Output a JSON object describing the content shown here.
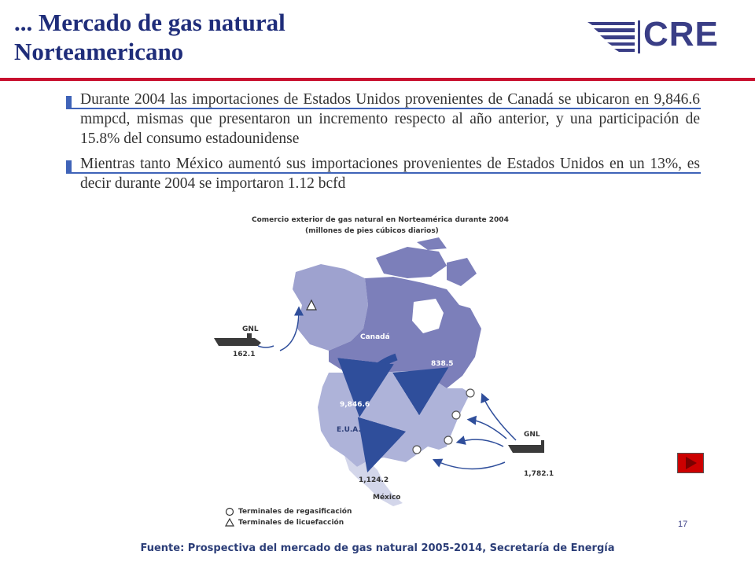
{
  "slide": {
    "title": "... Mercado de gas natural Norteamericano",
    "logo_text": "CRE",
    "bullets": [
      "Durante 2004 las importaciones de Estados Unidos provenientes de Canadá se ubicaron en 9,846.6 mmpcd, mismas que presentaron un incremento respecto al año anterior, y una participación de 15.8% del consumo estadounidense",
      "Mientras tanto México aumentó sus importaciones provenientes de Estados Unidos en un 13%, es decir durante 2004 se importaron 1.12 bcfd"
    ],
    "page_number": "17",
    "source": "Fuente: Prospectiva del mercado de gas natural 2005-2014, Secretaría de Energía",
    "colors": {
      "title": "#1f2d7a",
      "rule": "#c8102e",
      "bullet": "#3f63b8",
      "next_button": "#cc0000"
    }
  },
  "figure": {
    "title": "Comercio exterior de gas natural en Norteamérica durante 2004",
    "subtitle": "(millones de pies cúbicos diarios)",
    "labels": {
      "canada": "Canadá",
      "usa": "E.U.A.",
      "mexico": "México",
      "gnl_west": "GNL",
      "gnl_east": "GNL"
    },
    "flows": {
      "canada_to_usa": "9,846.6",
      "usa_to_canada": "838.5",
      "usa_to_mexico": "1,124.2",
      "lng_west": "162.1",
      "lng_east": "1,782.1"
    },
    "legend": [
      {
        "symbol": "circle-icon",
        "label": "Terminales de regasificación"
      },
      {
        "symbol": "triangle-icon",
        "label": "Terminales de licuefacción"
      }
    ],
    "colors": {
      "canada": "#7c7fba",
      "usa": "#aeb3d9",
      "mexico": "#d3d6ea",
      "arrow": "#2f4e9b"
    }
  }
}
